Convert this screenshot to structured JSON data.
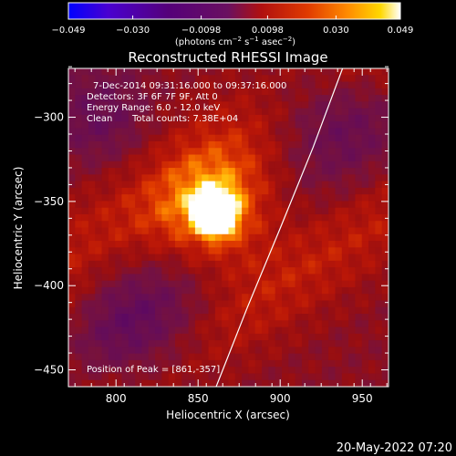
{
  "chart_data": {
    "type": "heatmap",
    "title": "Reconstructed RHESSI Image",
    "xlabel": "Heliocentric X (arcsec)",
    "ylabel": "Heliocentric Y (arcsec)",
    "xlim": [
      771,
      966
    ],
    "ylim": [
      -460,
      -271
    ],
    "x_ticks": [
      800,
      850,
      900,
      950
    ],
    "y_ticks": [
      -300,
      -350,
      -400,
      -450
    ],
    "colorbar": {
      "label_main": "(photons cm",
      "label_exp1": "−2",
      "label_mid": " s",
      "label_exp2": "−1",
      "label_tail": " asec",
      "label_exp3": "−2",
      "label_end": ")",
      "ticks": [
        "−0.049",
        "−0.030",
        "−0.0098",
        "0.0098",
        "0.030",
        "0.049"
      ],
      "tick_values": [
        -0.049,
        -0.03,
        -0.0098,
        0.0098,
        0.03,
        0.049
      ],
      "range": [
        -0.049,
        0.049
      ],
      "colormap": [
        "#0000ff",
        "#5000c0",
        "#500070",
        "#6a0c52",
        "#a01010",
        "#e03000",
        "#ff8000",
        "#ffd000",
        "#ffffff"
      ]
    },
    "annotations": {
      "time_range": "7-Dec-2014 09:31:16.000 to 09:37:16.000",
      "detectors": "Detectors: 3F 6F 7F 9F, Att 0",
      "energy": "Energy Range: 6.0 - 12.0 keV",
      "clean": "Clean",
      "total_counts": "Total counts: 7.38E+04",
      "peak": "Position of Peak = [861,-357]"
    },
    "peak": {
      "x": 861,
      "y": -357
    },
    "limb_curve": [
      [
        861,
        -460
      ],
      [
        880,
        -413
      ],
      [
        900,
        -366
      ],
      [
        920,
        -318
      ],
      [
        938,
        -271
      ]
    ],
    "timestamp": "20-May-2022 07:20"
  }
}
